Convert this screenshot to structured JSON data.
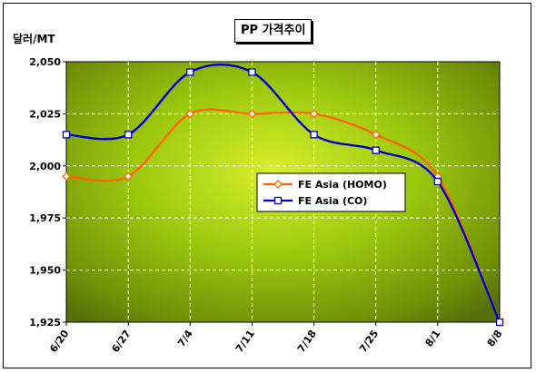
{
  "chart_data": {
    "type": "line",
    "title": "PP 가격추이",
    "ylabel": "달러/MT",
    "xlabel": "",
    "categories": [
      "6/20",
      "6/27",
      "7/4",
      "7/11",
      "7/18",
      "7/25",
      "8/1",
      "8/8"
    ],
    "ylim": [
      1925,
      2050
    ],
    "yticks": [
      1925,
      1950,
      1975,
      2000,
      2025,
      2050
    ],
    "ytick_labels": [
      "1,925",
      "1,950",
      "1,975",
      "2,000",
      "2,025",
      "2,050"
    ],
    "grid": true,
    "legend_position": "center-right",
    "series": [
      {
        "name": "FE Asia (HOMO)",
        "values": [
          1995,
          1995,
          2025,
          2025,
          2025,
          2015,
          1995,
          1925
        ],
        "color": "#ff6600",
        "marker": "diamond"
      },
      {
        "name": "FE Asia (CO)",
        "values": [
          2015,
          2015,
          2045,
          2045,
          2015,
          2007.5,
          1992.5,
          1925
        ],
        "color": "#0000cc",
        "marker": "square"
      }
    ]
  }
}
